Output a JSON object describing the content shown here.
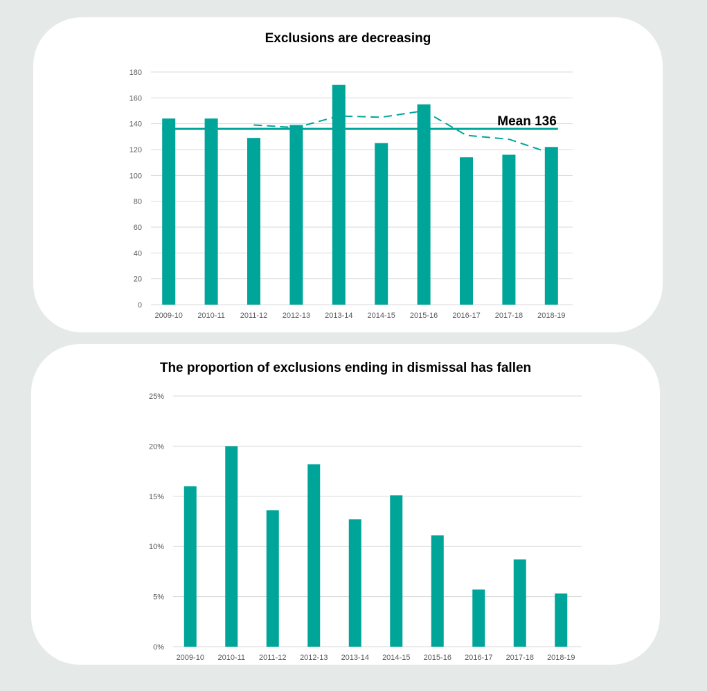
{
  "colors": {
    "bar": "#00a599",
    "grid": "#d9d9d9",
    "axis_text": "#595959",
    "background": "#e5eae9"
  },
  "chart_data": [
    {
      "type": "bar",
      "title": "Exclusions are decreasing",
      "categories": [
        "2009-10",
        "2010-11",
        "2011-12",
        "2012-13",
        "2013-14",
        "2014-15",
        "2015-16",
        "2016-17",
        "2017-18",
        "2018-19"
      ],
      "values": [
        144,
        144,
        129,
        139,
        170,
        125,
        155,
        114,
        116,
        122
      ],
      "ylim": [
        0,
        180
      ],
      "yticks": [
        0,
        20,
        40,
        60,
        80,
        100,
        120,
        140,
        160,
        180
      ],
      "ytick_labels": [
        "0",
        "20",
        "40",
        "60",
        "80",
        "100",
        "120",
        "140",
        "160",
        "180"
      ],
      "grid": true,
      "mean": {
        "value": 136,
        "label": "Mean 136"
      },
      "moving_average": {
        "style": "dashed",
        "values": [
          null,
          null,
          139,
          137,
          146,
          145,
          150,
          131,
          128,
          117
        ]
      }
    },
    {
      "type": "bar",
      "title": "The proportion of exclusions ending in dismissal has fallen",
      "categories": [
        "2009-10",
        "2010-11",
        "2011-12",
        "2012-13",
        "2013-14",
        "2014-15",
        "2015-16",
        "2016-17",
        "2017-18",
        "2018-19"
      ],
      "values": [
        16.0,
        20.0,
        13.6,
        18.2,
        12.7,
        15.1,
        11.1,
        5.7,
        8.7,
        5.3
      ],
      "ylim": [
        0,
        25
      ],
      "yticks": [
        0,
        5,
        10,
        15,
        20,
        25
      ],
      "ytick_labels": [
        "0%",
        "5%",
        "10%",
        "15%",
        "20%",
        "25%"
      ],
      "grid": true
    }
  ]
}
